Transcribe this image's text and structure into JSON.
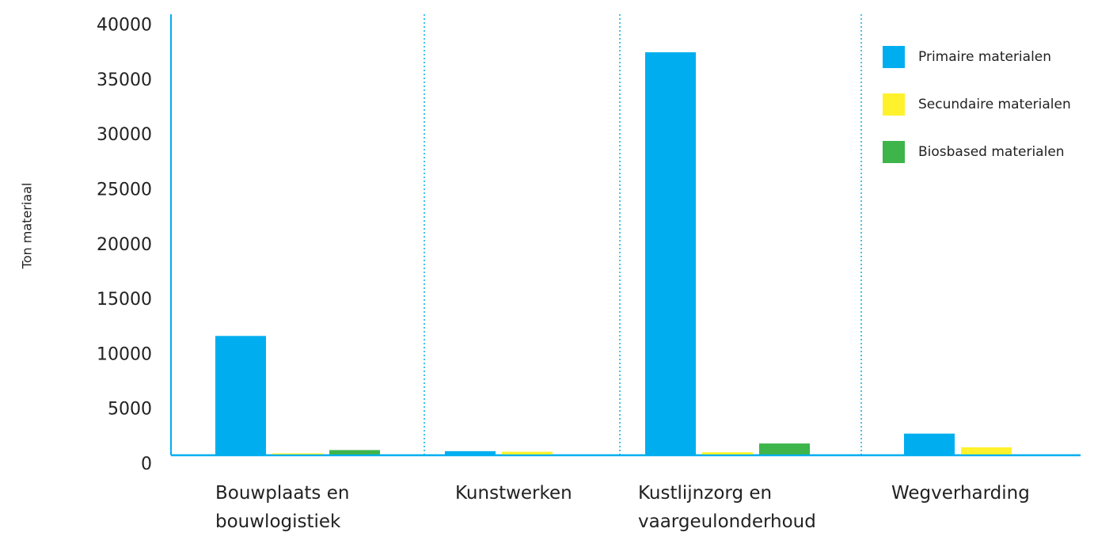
{
  "chart_data": {
    "type": "bar",
    "y_label": "Ton materiaal",
    "categories": [
      "Bouwplaats en bouwlogistiek",
      "Kunstwerken",
      "Kustlijnzorg en vaargeulonderhoud",
      "Wegverharding"
    ],
    "series": [
      {
        "name": "Primaire materialen",
        "color": "#00aeef",
        "values": [
          10800,
          300,
          36650,
          1900
        ]
      },
      {
        "name": "Secundaire materialen",
        "color": "#fff22d",
        "values": [
          100,
          250,
          200,
          650
        ]
      },
      {
        "name": "Biosbased materialen",
        "color": "#3db54a",
        "values": [
          400,
          0,
          1000,
          0
        ]
      }
    ],
    "ylim": [
      0,
      40000
    ],
    "yticks": [
      0,
      5000,
      10000,
      15000,
      20000,
      25000,
      30000,
      35000,
      40000
    ],
    "legend": "top-right"
  }
}
